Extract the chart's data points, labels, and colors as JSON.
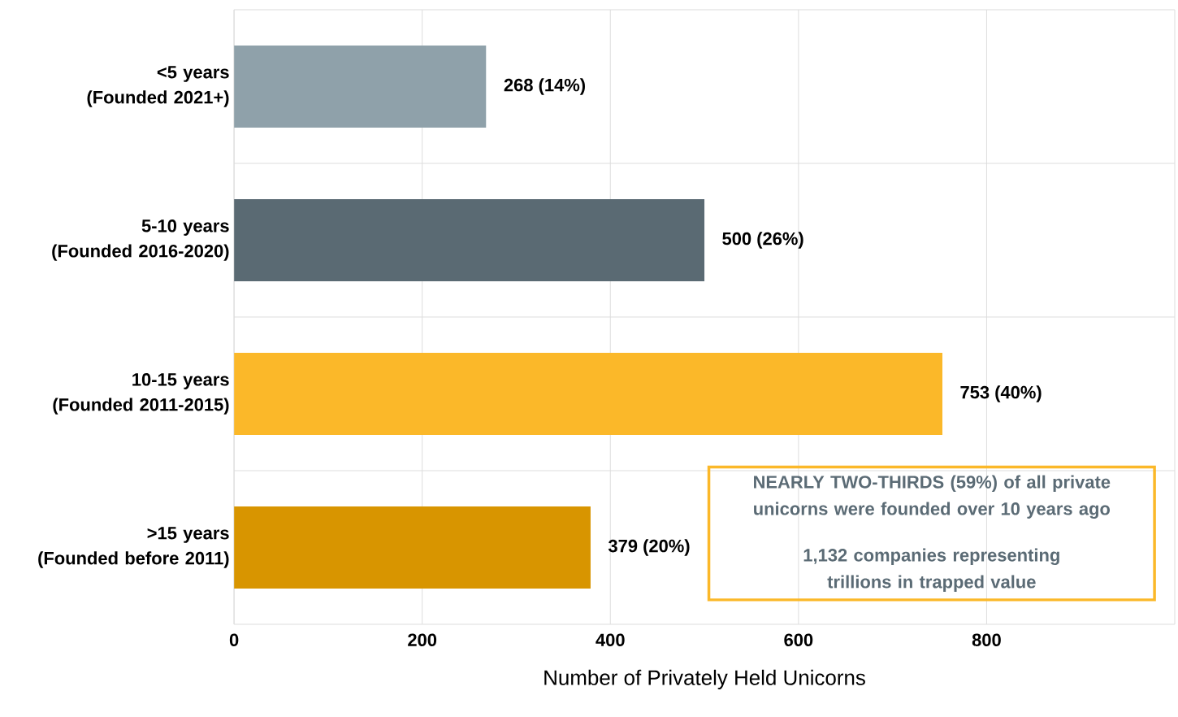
{
  "chart_data": {
    "type": "bar",
    "orientation": "horizontal",
    "categories": [
      "<5 years\n(Founded 2021+)",
      "5-10 years\n(Founded 2016-2020)",
      "10-15 years\n(Founded 2011-2015)",
      ">15 years\n(Founded before 2011)"
    ],
    "values": [
      268,
      500,
      753,
      379
    ],
    "colors": [
      "#8fa1aa",
      "#5a6a73",
      "#fbb829",
      "#d89500"
    ],
    "value_labels": [
      "268 (14%)",
      "500 (26%)",
      "753 (40%)",
      "379 (20%)"
    ],
    "xlabel": "Number of Privately Held Unicorns",
    "xlim": [
      0,
      1000
    ],
    "xticks": [
      0,
      200,
      400,
      600,
      800
    ],
    "grid": true,
    "annotations": [
      "NEARLY TWO-THIRDS (59%) of all private unicorns were founded over 10 years ago",
      "1,132 companies representing trillions in trapped value"
    ]
  }
}
